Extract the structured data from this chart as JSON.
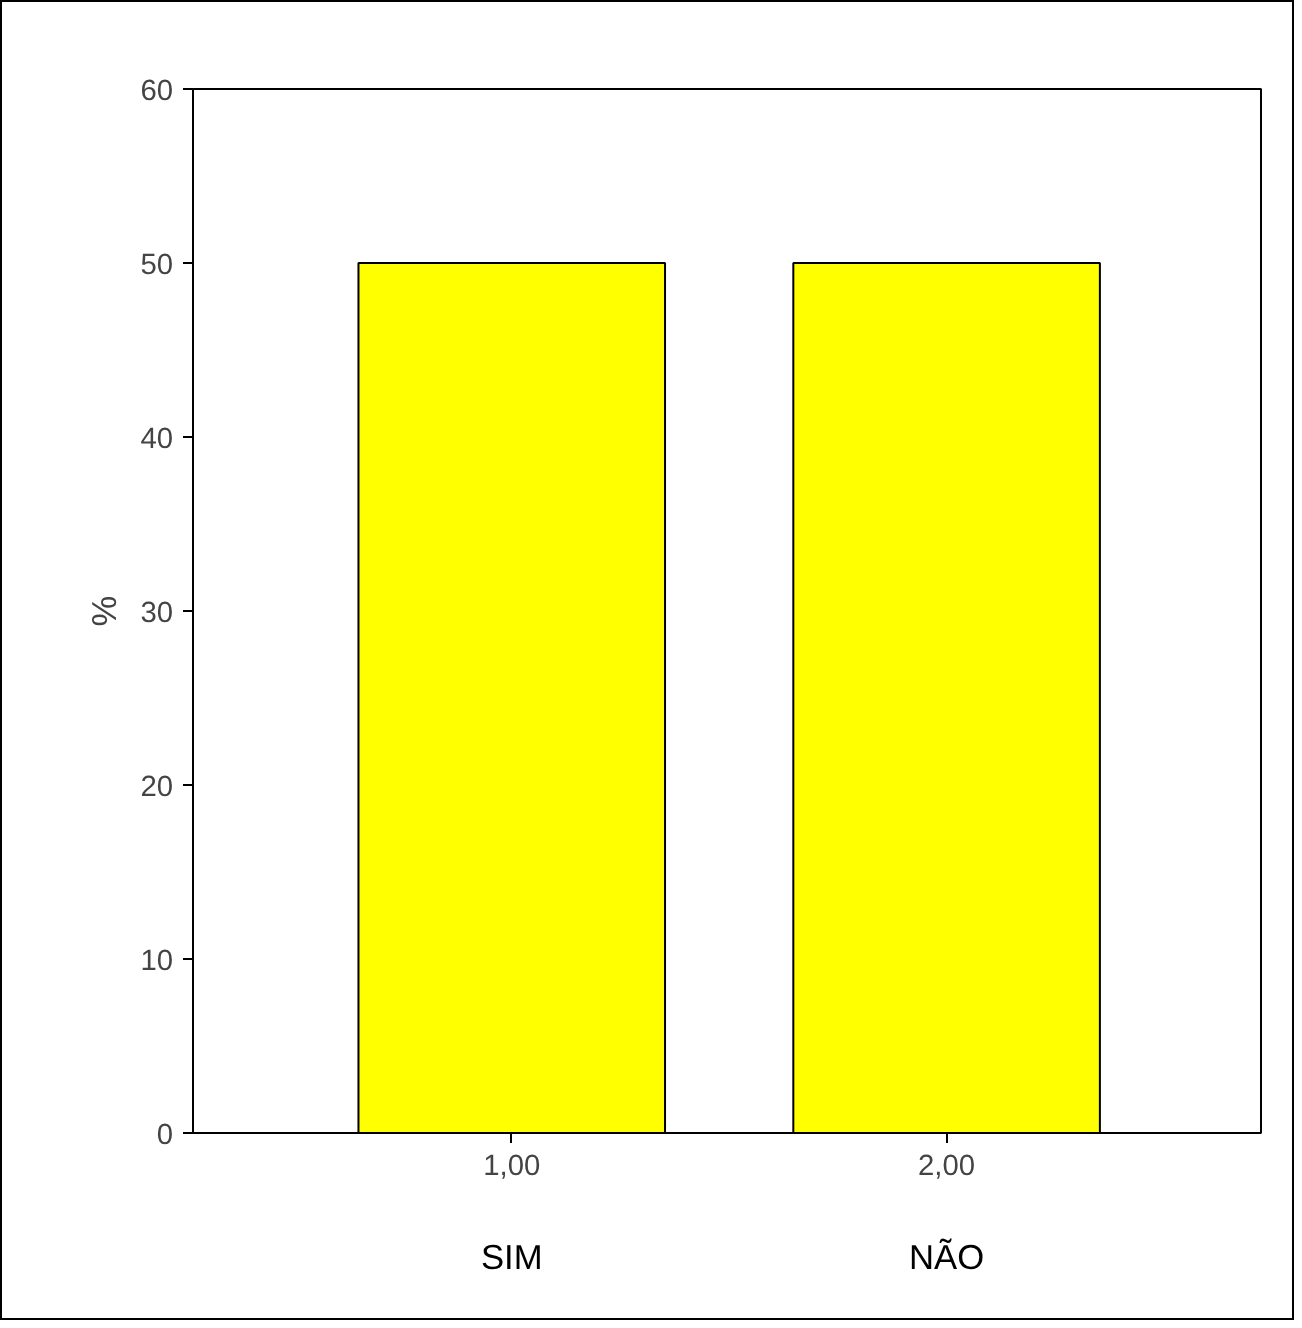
{
  "chart_data": {
    "type": "bar",
    "ylabel": "%",
    "categories": [
      "1,00",
      "2,00"
    ],
    "values": [
      50,
      50
    ],
    "color": "#ffff00",
    "ylim": [
      0,
      60
    ],
    "yticks": [
      0,
      10,
      20,
      30,
      40,
      50,
      60
    ],
    "grid": false,
    "annotations": [
      "SIM",
      "NÃO"
    ]
  }
}
